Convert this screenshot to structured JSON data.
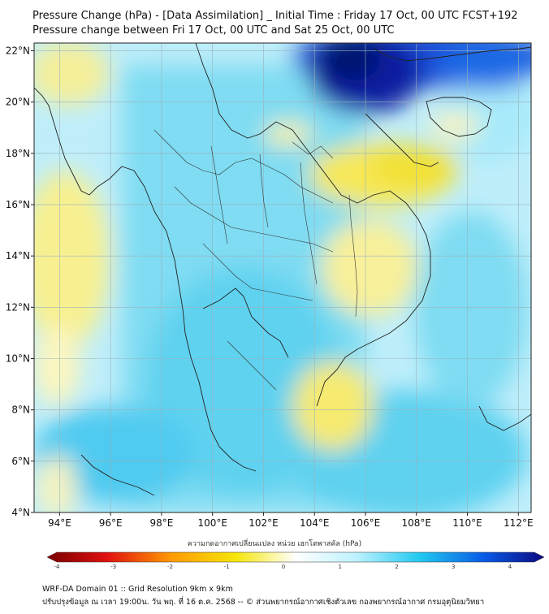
{
  "header": {
    "title_line1": "Pressure Change (hPa) - [Data Assimilation] _ Initial Time : Friday 17 Oct, 00 UTC FCST+192",
    "title_line2": "Pressure change between Fri 17 Oct, 00 UTC and Sat 25 Oct, 00 UTC"
  },
  "map": {
    "lat_labels": [
      "22°N",
      "20°N",
      "18°N",
      "16°N",
      "14°N",
      "12°N",
      "10°N",
      "8°N",
      "6°N",
      "4°N"
    ],
    "lon_labels": [
      "94°E",
      "96°E",
      "98°E",
      "100°E",
      "102°E",
      "104°E",
      "106°E",
      "108°E",
      "110°E",
      "112°E"
    ],
    "lat_range": [
      4,
      22.3
    ],
    "lon_range": [
      93.0,
      112.5
    ],
    "grid": true,
    "field": "pressure change (hPa)"
  },
  "colorbar": {
    "title": "ความกดอากาศเปลี่ยนแปลง หน่วย เฮกโตพาสคัล (hPa)",
    "ticks": [
      "-4",
      "-3",
      "-2",
      "-1",
      "0",
      "1",
      "2",
      "3",
      "4"
    ],
    "range": [
      -4,
      4
    ],
    "colors": {
      "neg_dark": "#7a0000",
      "neg_red": "#e01010",
      "neg_orange": "#ff9a00",
      "neg_yellow": "#f5e60a",
      "zero": "#ffffff",
      "pos_light": "#bff2ff",
      "pos_cyan": "#22c8f0",
      "pos_blue": "#0a5ae6",
      "pos_dark": "#0a0a80"
    }
  },
  "footer": {
    "line1": "WRF-DA Domain 01 :: Grid Resolution 9km x 9km",
    "line2": "ปรับปรุงข้อมูล ณ เวลา 19:00น. วัน พฤ. ที่ 16 ต.ค. 2568 -- © ส่วนพยากรณ์อากาศเชิงตัวเลข กองพยากรณ์อากาศ กรมอุตุนิยมวิทยา"
  }
}
